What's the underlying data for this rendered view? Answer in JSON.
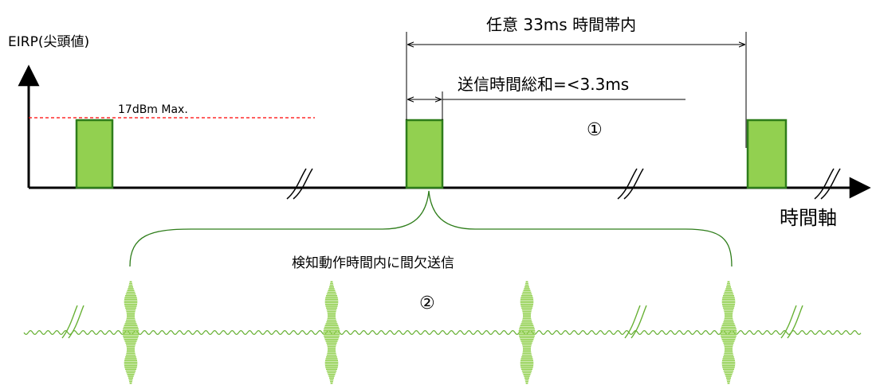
{
  "labels": {
    "y_axis": "EIRP(尖頭値)",
    "x_axis": "時間軸",
    "max_power": "17dBm Max.",
    "window": "任意 33ms 時間帯内",
    "tx_sum": "送信時間総和=<3.3ms",
    "marker_1": "①",
    "detect": "検知動作時間内に間欠送信",
    "marker_2": "②"
  },
  "colors": {
    "pulse_fill": "#92d050",
    "pulse_stroke": "#2e7d1a",
    "wave": "#66b032",
    "limit_line": "#ff0000",
    "axis": "#000000"
  }
}
